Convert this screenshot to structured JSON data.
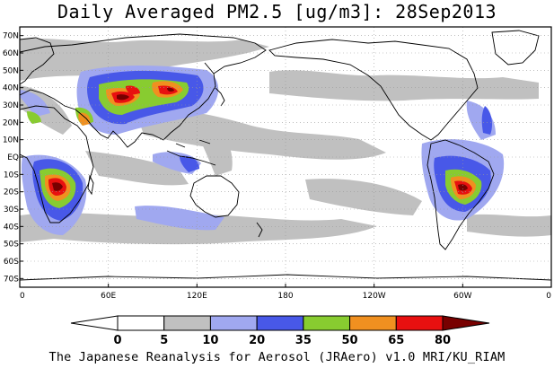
{
  "title": "Daily Averaged PM2.5 [ug/m3]: 28Sep2013",
  "credit": "The Japanese Reanalysis for Aerosol (JRAero) v1.0 MRI/KU_RIAM",
  "map": {
    "lat_ticks": [
      "70N",
      "60N",
      "50N",
      "40N",
      "30N",
      "20N",
      "10N",
      "EQ",
      "10S",
      "20S",
      "30S",
      "40S",
      "50S",
      "60S",
      "70S"
    ],
    "lon_ticks": [
      "0",
      "60E",
      "120E",
      "180",
      "120W",
      "60W",
      "0"
    ],
    "lat_values": [
      70,
      60,
      50,
      40,
      30,
      20,
      10,
      0,
      -10,
      -20,
      -30,
      -40,
      -50,
      -60,
      -70
    ],
    "lon_values": [
      0,
      60,
      120,
      180,
      240,
      300,
      360
    ],
    "lat_range": [
      -75,
      75
    ],
    "lon_range": [
      0,
      360
    ],
    "grid": "dotted"
  },
  "colorbar": {
    "levels": [
      "0",
      "5",
      "10",
      "20",
      "35",
      "50",
      "65",
      "80"
    ],
    "colors": [
      "#ffffff",
      "#c0c0c0",
      "#a0a8f0",
      "#4858e8",
      "#88cc30",
      "#f09020",
      "#e81010",
      "#780000"
    ]
  }
}
